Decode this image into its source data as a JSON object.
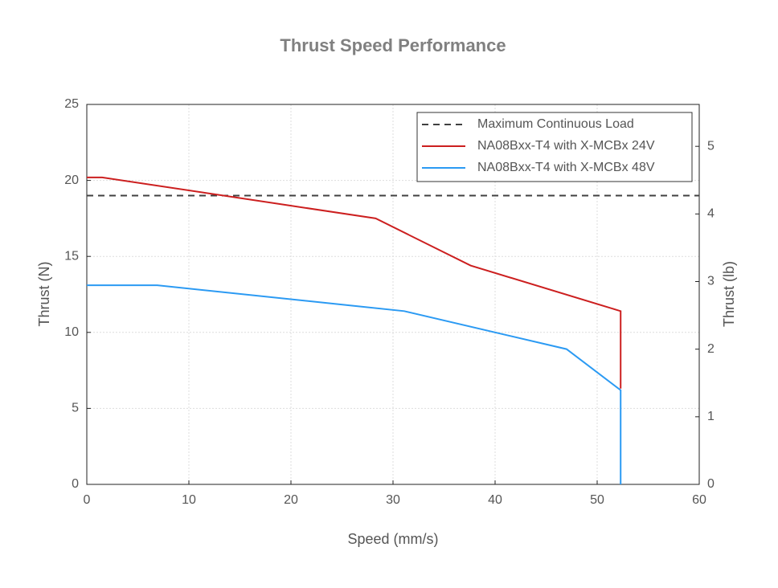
{
  "chart_data": {
    "type": "line",
    "title": "Thrust Speed Performance",
    "x_label": "Speed (mm/s)",
    "y_label": "Thrust (N)",
    "y2_label": "Thrust (lb)",
    "xlim": [
      0,
      60
    ],
    "xticks": [
      0,
      10,
      20,
      30,
      40,
      50,
      60
    ],
    "ylim": [
      0,
      25
    ],
    "yticks": [
      0,
      5,
      10,
      15,
      20,
      25
    ],
    "y2lim": [
      0,
      5.62
    ],
    "y2ticks": [
      0,
      1,
      2,
      3,
      4,
      5
    ],
    "grid": true,
    "legend": "upper right",
    "series": [
      {
        "name": "Maximum Continuous Load",
        "color": "#404040",
        "style": "dashed",
        "x": [
          0,
          60
        ],
        "values": [
          19,
          19
        ]
      },
      {
        "name": "NA08Bxx-T4 with X-MCBx 24V",
        "color": "#cc1f1f",
        "style": "solid",
        "x": [
          0,
          1.5,
          28.3,
          37.6,
          52.3,
          52.3
        ],
        "values": [
          20.2,
          20.2,
          17.5,
          14.4,
          11.4,
          6.3
        ]
      },
      {
        "name": "NA08Bxx-T4 with X-MCBx 48V",
        "color": "#2b9af3",
        "style": "solid",
        "x": [
          0,
          6.9,
          31.1,
          47.0,
          52.3,
          52.3
        ],
        "values": [
          13.1,
          13.1,
          11.4,
          8.9,
          6.2,
          0
        ]
      }
    ]
  }
}
